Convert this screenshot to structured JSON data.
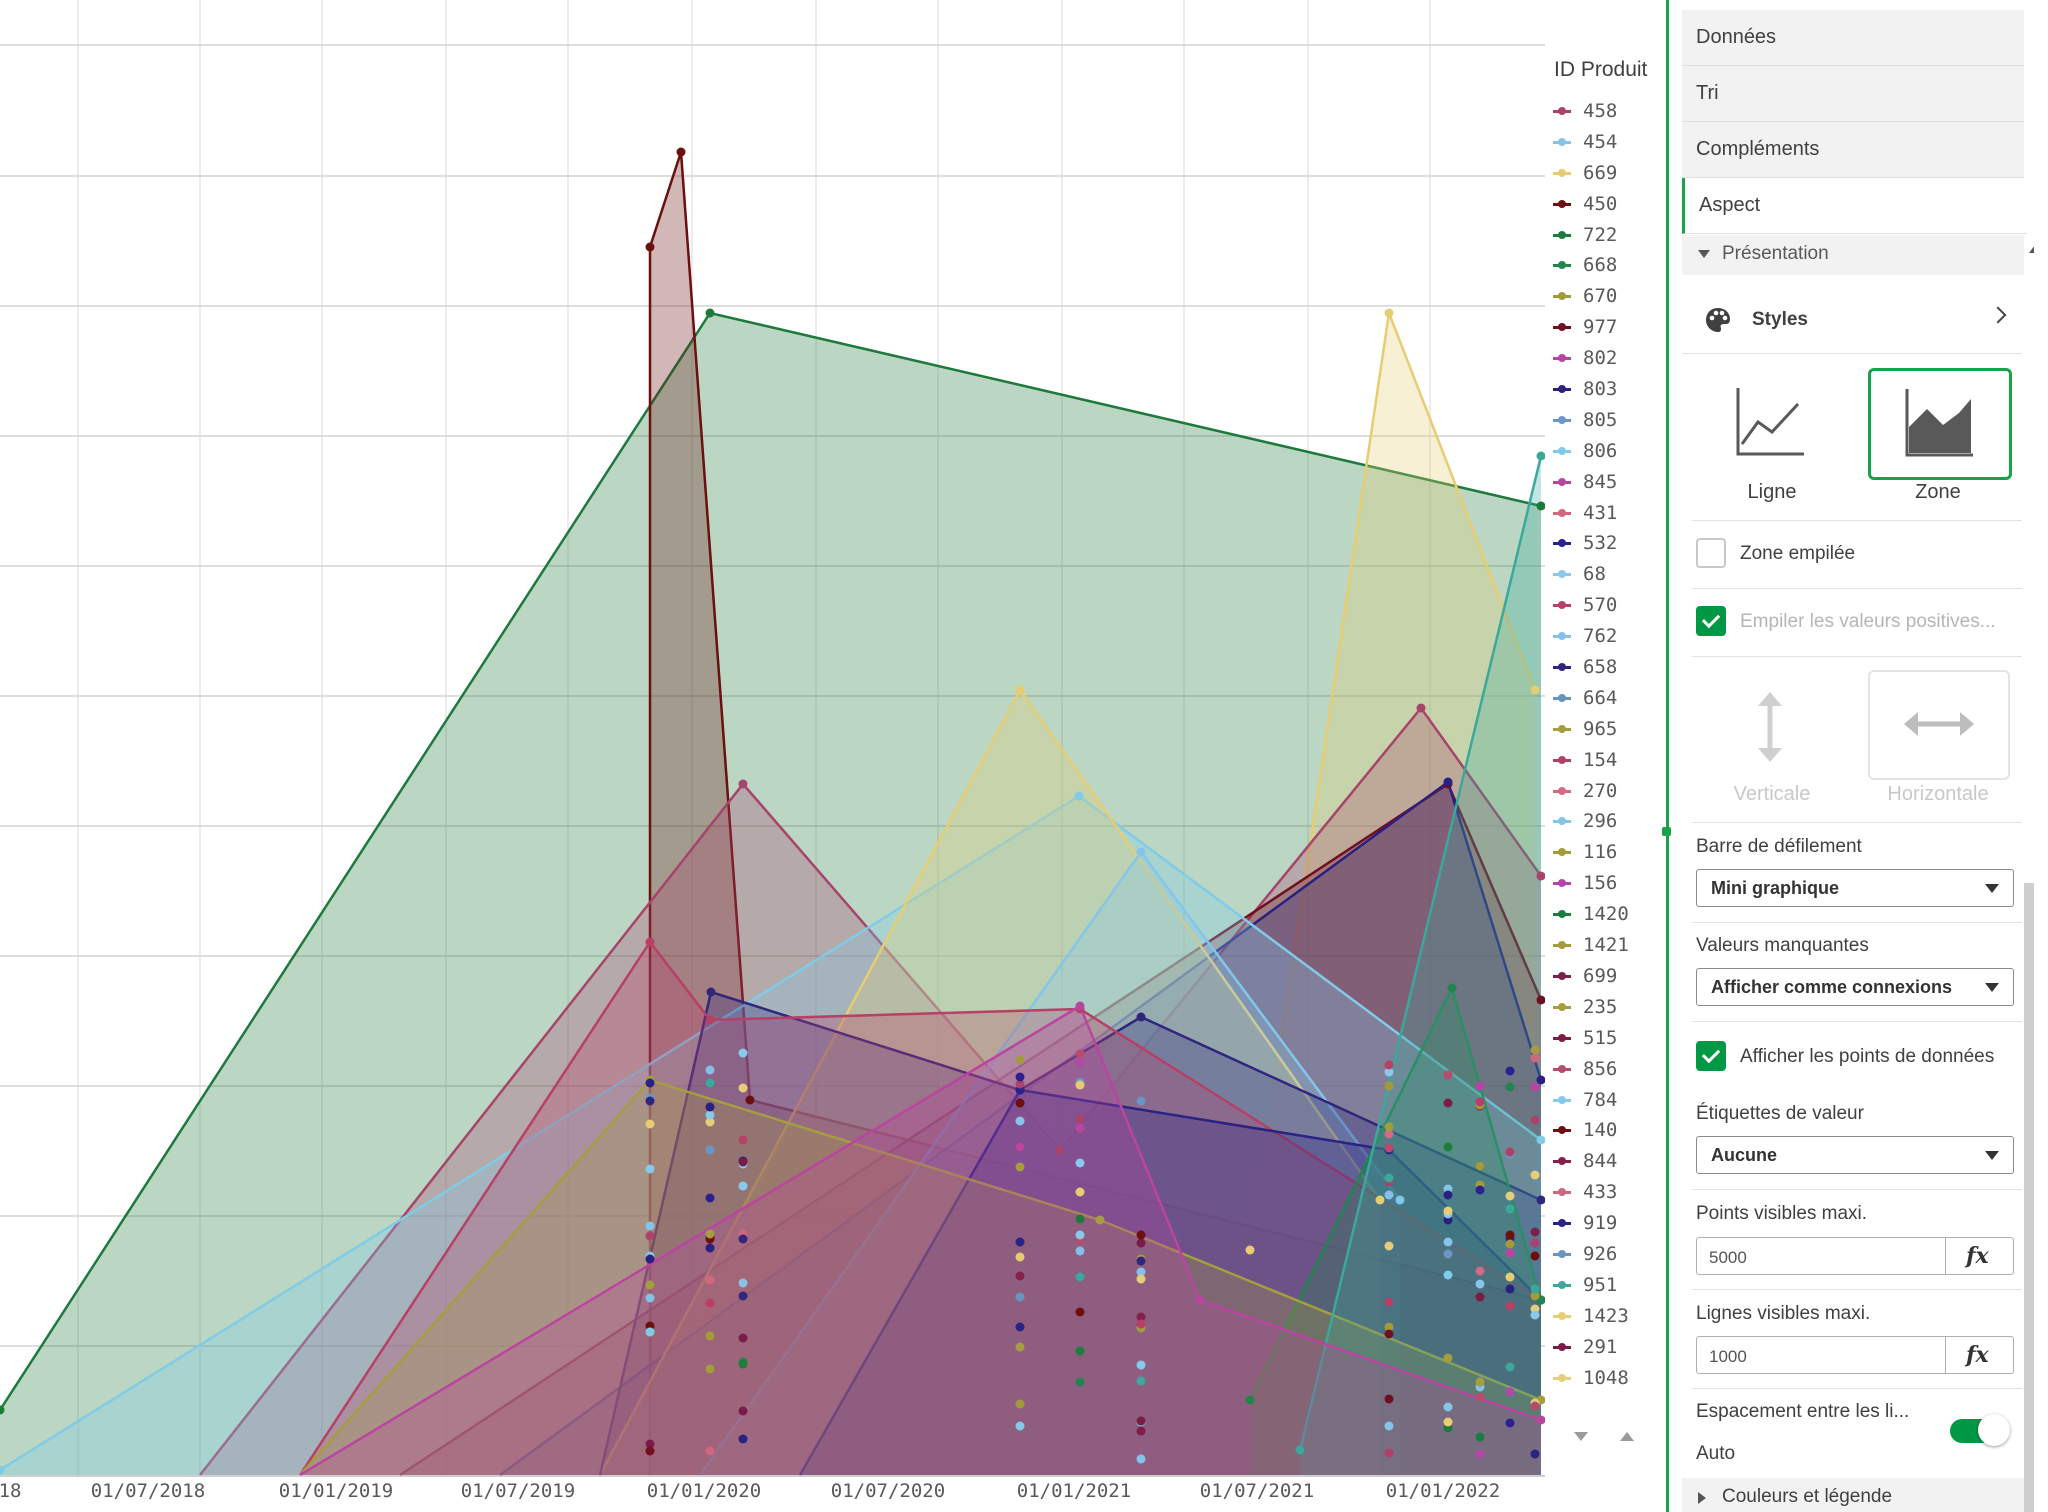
{
  "chart_data": {
    "type": "area",
    "x_ticks": [
      "18",
      "01/07/2018",
      "01/01/2019",
      "01/07/2019",
      "01/01/2020",
      "01/07/2020",
      "01/01/2021",
      "01/07/2021",
      "01/01/2022"
    ],
    "legend_title": "ID Produit",
    "grid": true,
    "legend_position": "right",
    "series": [
      {
        "name": "458",
        "color": "#a8436b"
      },
      {
        "name": "454",
        "color": "#86c5e6"
      },
      {
        "name": "669",
        "color": "#e6cd72"
      },
      {
        "name": "450",
        "color": "#6b0f0f"
      },
      {
        "name": "722",
        "color": "#1e7a3c"
      },
      {
        "name": "668",
        "color": "#21854d"
      },
      {
        "name": "670",
        "color": "#a29b3a"
      },
      {
        "name": "977",
        "color": "#700f22"
      },
      {
        "name": "802",
        "color": "#b543a8"
      },
      {
        "name": "803",
        "color": "#2a2080"
      },
      {
        "name": "805",
        "color": "#6b96c8"
      },
      {
        "name": "806",
        "color": "#80cbe8"
      },
      {
        "name": "845",
        "color": "#ba45a0"
      },
      {
        "name": "431",
        "color": "#d2667f"
      },
      {
        "name": "532",
        "color": "#2a2090"
      },
      {
        "name": "68",
        "color": "#8ac8ec"
      },
      {
        "name": "570",
        "color": "#b83f66"
      },
      {
        "name": "762",
        "color": "#86c0e6"
      },
      {
        "name": "658",
        "color": "#30267e"
      },
      {
        "name": "664",
        "color": "#6894c2"
      },
      {
        "name": "965",
        "color": "#a59d3e"
      },
      {
        "name": "154",
        "color": "#b03f6a"
      },
      {
        "name": "270",
        "color": "#d46a83"
      },
      {
        "name": "296",
        "color": "#84c6ea"
      },
      {
        "name": "116",
        "color": "#a39c3a"
      },
      {
        "name": "156",
        "color": "#b547ac"
      },
      {
        "name": "1420",
        "color": "#1e7c3e"
      },
      {
        "name": "1421",
        "color": "#a39c3a"
      },
      {
        "name": "699",
        "color": "#7c1f4a"
      },
      {
        "name": "235",
        "color": "#a59d40"
      },
      {
        "name": "515",
        "color": "#7a1d48"
      },
      {
        "name": "856",
        "color": "#b64b6e"
      },
      {
        "name": "784",
        "color": "#88c8ea"
      },
      {
        "name": "140",
        "color": "#6a1010"
      },
      {
        "name": "844",
        "color": "#85204f"
      },
      {
        "name": "433",
        "color": "#cf6680"
      },
      {
        "name": "919",
        "color": "#2a2285"
      },
      {
        "name": "926",
        "color": "#6a95c6"
      },
      {
        "name": "951",
        "color": "#3aa89a"
      },
      {
        "name": "1423",
        "color": "#e6cd76"
      },
      {
        "name": "291",
        "color": "#7b1b49"
      },
      {
        "name": "1048",
        "color": "#e6cd7a"
      }
    ]
  },
  "panel": {
    "nav": [
      "Données",
      "Tri",
      "Compléments",
      "Aspect"
    ],
    "section_title": "Présentation",
    "styles_label": "Styles",
    "chart_style_options": [
      {
        "label": "Ligne",
        "selected": false
      },
      {
        "label": "Zone",
        "selected": true
      }
    ],
    "stacked_zone": {
      "label": "Zone empilée",
      "checked": false
    },
    "stack_positive": {
      "label": "Empiler les valeurs positives...",
      "checked": true,
      "disabled": true
    },
    "orientation_options": [
      {
        "label": "Verticale",
        "disabled": true
      },
      {
        "label": "Horizontale",
        "disabled": true
      }
    ],
    "scrollbar": {
      "label": "Barre de défilement",
      "value": "Mini graphique"
    },
    "missing_values": {
      "label": "Valeurs manquantes",
      "value": "Afficher comme connexions"
    },
    "show_points": {
      "label": "Afficher les points de données",
      "checked": true
    },
    "value_labels": {
      "label": "Étiquettes de valeur",
      "value": "Aucune"
    },
    "max_points": {
      "label": "Points visibles maxi.",
      "value": "5000",
      "fx": "fx"
    },
    "max_lines": {
      "label": "Lignes visibles maxi.",
      "value": "1000",
      "fx": "fx"
    },
    "line_spacing": {
      "label": "Espacement entre les li...",
      "value": "Auto",
      "toggle_on": true
    },
    "colors_legend": "Couleurs et légende"
  }
}
